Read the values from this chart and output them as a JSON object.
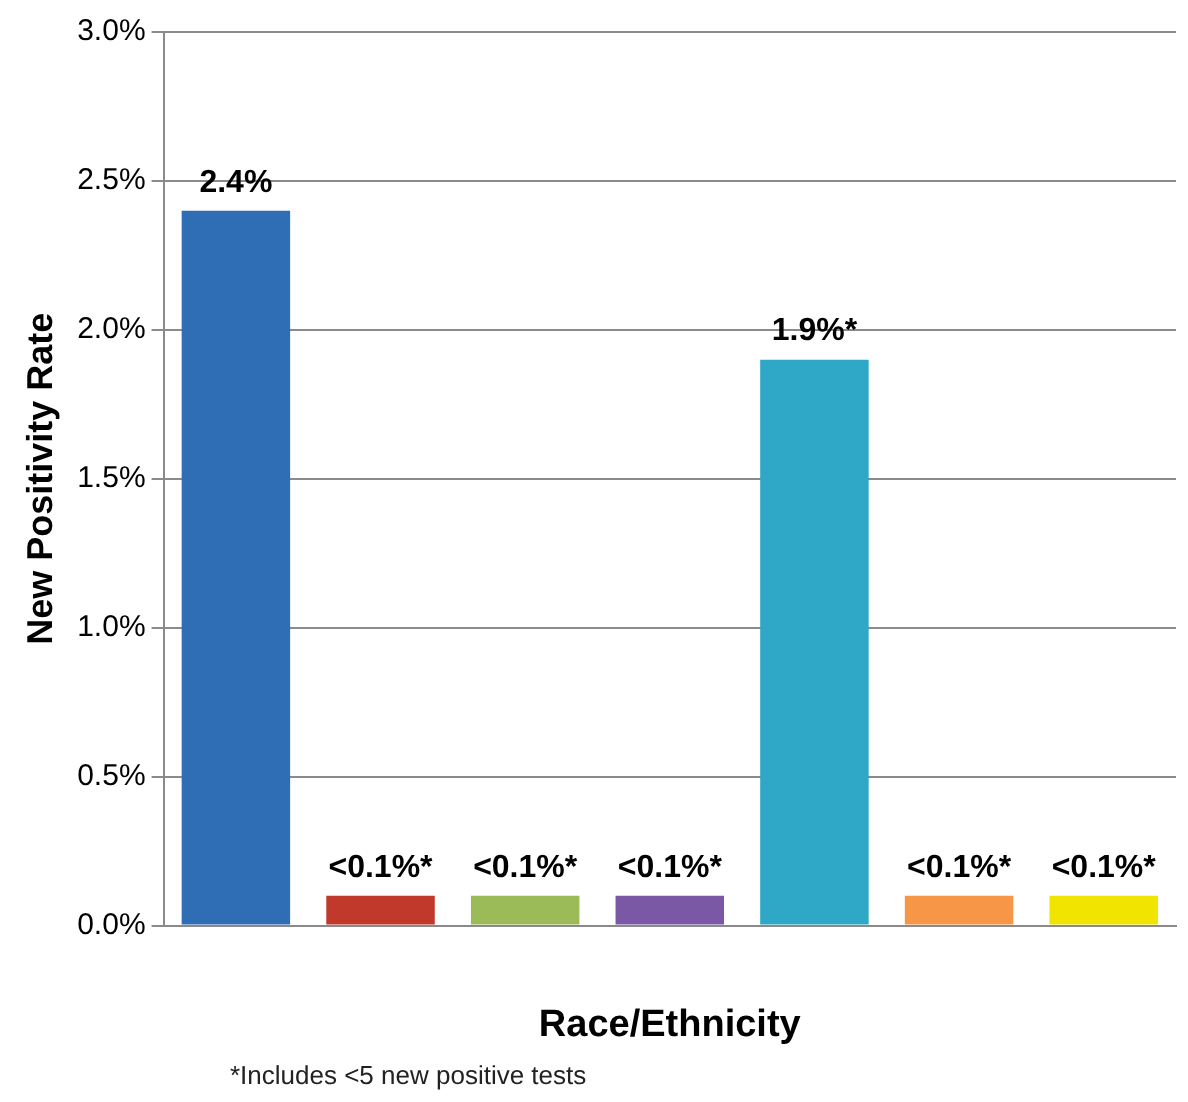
{
  "chart_data": {
    "type": "bar",
    "ylabel": "New Positivity Rate",
    "xlabel": "Race/Ethnicity",
    "annotations": [
      "*Includes <5 new positive tests"
    ],
    "categories": [
      null,
      null,
      null,
      null,
      null,
      null,
      null
    ],
    "values": [
      2.4,
      0.1,
      0.1,
      0.1,
      1.9,
      0.1,
      0.1
    ],
    "colors": [
      "#2f6db5",
      "#c0392b",
      "#9bbb59",
      "#7b58a6",
      "#2fa8c8",
      "#f79646",
      "#f0e400"
    ],
    "value_labels": [
      "2.4%",
      "<0.1%*",
      "<0.1%*",
      "<0.1%*",
      "1.9%*",
      "<0.1%*",
      "<0.1%*"
    ],
    "ylim": [
      0,
      3
    ],
    "yticks": [
      {
        "value": 0,
        "label": "0.0%"
      },
      {
        "value": 0.5,
        "label": "0.5%"
      },
      {
        "value": 1,
        "label": "1.0%"
      },
      {
        "value": 1.5,
        "label": "1.5%"
      },
      {
        "value": 2,
        "label": "2.0%"
      },
      {
        "value": 2.5,
        "label": "2.5%"
      },
      {
        "value": 3,
        "label": "3.0%"
      }
    ],
    "grid": "y",
    "legend": false
  }
}
